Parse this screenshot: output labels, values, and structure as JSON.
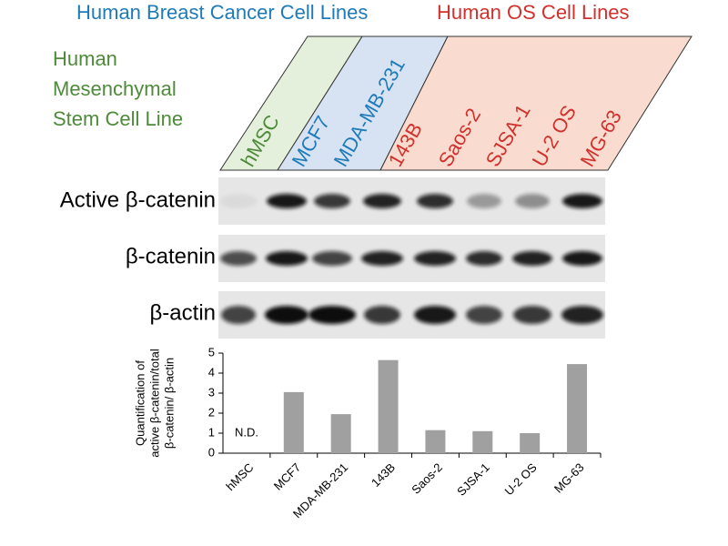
{
  "header": {
    "group_breast": "Human Breast Cancer Cell Lines",
    "group_os": "Human OS Cell Lines",
    "stem_lines": [
      "Human",
      "Mesenchymal",
      "Stem Cell Line"
    ],
    "lanes": [
      "hMSC",
      "MCF7",
      "MDA-MB-231",
      "143B",
      "Saos-2",
      "SJSA-1",
      "U-2 OS",
      "MG-63"
    ]
  },
  "blots": [
    {
      "label": "Active β-catenin"
    },
    {
      "label": "β-catenin"
    },
    {
      "label": "β-actin"
    }
  ],
  "chart_data": {
    "type": "bar",
    "y_label": [
      "Quantification of",
      "active β-catenin/total",
      "β-catenin/ β-actin"
    ],
    "categories": [
      "hMSC",
      "MCF7",
      "MDA-MB-231",
      "143B",
      "Saos-2",
      "SJSA-1",
      "U-2 OS",
      "MG-63"
    ],
    "values": [
      null,
      3.05,
      1.95,
      4.65,
      1.15,
      1.1,
      1.0,
      4.45
    ],
    "annotation": "N.D.",
    "color": "#a0a0a0",
    "ylim": [
      0,
      5
    ],
    "yticks": [
      0,
      1,
      2,
      3,
      4,
      5
    ]
  }
}
